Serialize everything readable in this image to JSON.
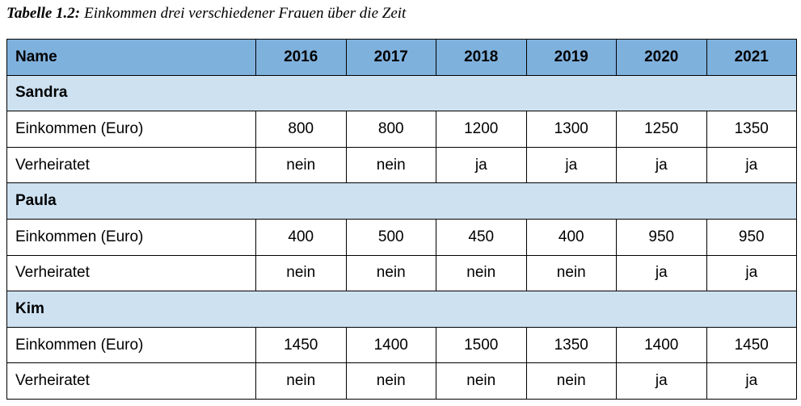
{
  "caption": {
    "label": "Tabelle 1.2:",
    "text": "Einkommen drei verschiedener Frauen über die Zeit"
  },
  "table": {
    "header": [
      "Name",
      "2016",
      "2017",
      "2018",
      "2019",
      "2020",
      "2021"
    ],
    "groups": [
      {
        "name": "Sandra",
        "rows": [
          [
            "Einkommen (Euro)",
            800,
            800,
            1200,
            1300,
            1250,
            1350
          ],
          [
            "Verheiratet",
            "nein",
            "nein",
            "ja",
            "ja",
            "ja",
            "ja"
          ]
        ]
      },
      {
        "name": "Paula",
        "rows": [
          [
            "Einkommen (Euro)",
            400,
            500,
            450,
            400,
            950,
            950
          ],
          [
            "Verheiratet",
            "nein",
            "nein",
            "nein",
            "nein",
            "ja",
            "ja"
          ]
        ]
      },
      {
        "name": "Kim",
        "rows": [
          [
            "Einkommen (Euro)",
            1450,
            1400,
            1500,
            1350,
            1400,
            1450
          ],
          [
            "Verheiratet",
            "nein",
            "nein",
            "nein",
            "nein",
            "ja",
            "ja"
          ]
        ]
      }
    ]
  }
}
